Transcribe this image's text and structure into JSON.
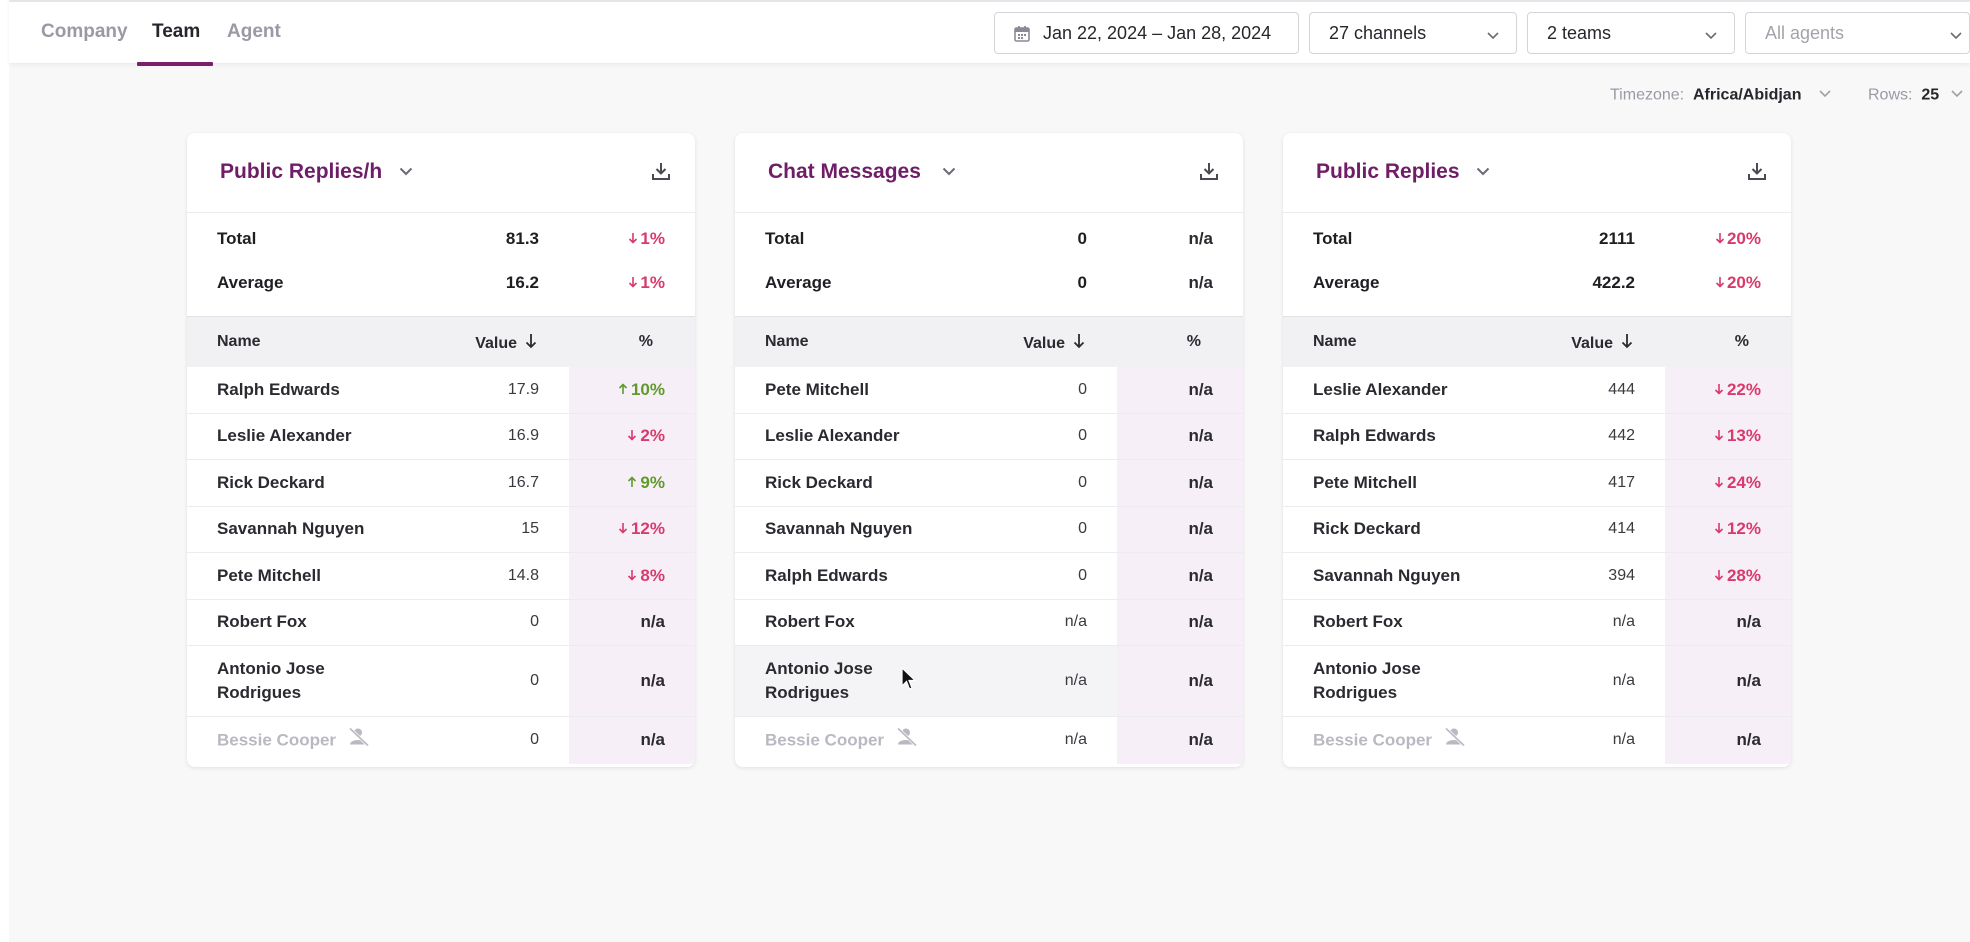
{
  "tabs": [
    {
      "label": "Company",
      "active": false
    },
    {
      "label": "Team",
      "active": true
    },
    {
      "label": "Agent",
      "active": false
    }
  ],
  "filters": {
    "date_range": "Jan 22, 2024 – Jan 28, 2024",
    "channels": "27 channels",
    "teams": "2 teams",
    "agents_placeholder": "All agents"
  },
  "settings": {
    "timezone_label": "Timezone:",
    "timezone_value": "Africa/Abidjan",
    "rows_label": "Rows:",
    "rows_value": "25"
  },
  "table_headers": {
    "name": "Name",
    "value": "Value",
    "pct": "%"
  },
  "summary_labels": {
    "total": "Total",
    "average": "Average"
  },
  "colors": {
    "accent": "#6f1d67",
    "down": "#d83a6b",
    "up": "#5f9a2a"
  },
  "cards": [
    {
      "title": "Public Replies/h",
      "total": {
        "value": "81.3",
        "pct": "1%",
        "dir": "down"
      },
      "average": {
        "value": "16.2",
        "pct": "1%",
        "dir": "down"
      },
      "rows": [
        {
          "name": "Ralph Edwards",
          "value": "17.9",
          "pct": "10%",
          "dir": "up"
        },
        {
          "name": "Leslie Alexander",
          "value": "16.9",
          "pct": "2%",
          "dir": "down"
        },
        {
          "name": "Rick Deckard",
          "value": "16.7",
          "pct": "9%",
          "dir": "up"
        },
        {
          "name": "Savannah Nguyen",
          "value": "15",
          "pct": "12%",
          "dir": "down"
        },
        {
          "name": "Pete Mitchell",
          "value": "14.8",
          "pct": "8%",
          "dir": "down"
        },
        {
          "name": "Robert Fox",
          "value": "0",
          "pct": "n/a",
          "dir": "none"
        },
        {
          "name": "Antonio Jose Rodrigues",
          "value": "0",
          "pct": "n/a",
          "dir": "none"
        },
        {
          "name": "Bessie Cooper",
          "value": "0",
          "pct": "n/a",
          "dir": "none",
          "disabled": true
        }
      ]
    },
    {
      "title": "Chat Messages",
      "total": {
        "value": "0",
        "pct": "n/a",
        "dir": "none"
      },
      "average": {
        "value": "0",
        "pct": "n/a",
        "dir": "none"
      },
      "rows": [
        {
          "name": "Pete Mitchell",
          "value": "0",
          "pct": "n/a",
          "dir": "none"
        },
        {
          "name": "Leslie Alexander",
          "value": "0",
          "pct": "n/a",
          "dir": "none"
        },
        {
          "name": "Rick Deckard",
          "value": "0",
          "pct": "n/a",
          "dir": "none"
        },
        {
          "name": "Savannah Nguyen",
          "value": "0",
          "pct": "n/a",
          "dir": "none"
        },
        {
          "name": "Ralph Edwards",
          "value": "0",
          "pct": "n/a",
          "dir": "none"
        },
        {
          "name": "Robert Fox",
          "value": "n/a",
          "pct": "n/a",
          "dir": "none"
        },
        {
          "name": "Antonio Jose Rodrigues",
          "value": "n/a",
          "pct": "n/a",
          "dir": "none",
          "hover": true
        },
        {
          "name": "Bessie Cooper",
          "value": "n/a",
          "pct": "n/a",
          "dir": "none",
          "disabled": true
        }
      ]
    },
    {
      "title": "Public Replies",
      "total": {
        "value": "2111",
        "pct": "20%",
        "dir": "down"
      },
      "average": {
        "value": "422.2",
        "pct": "20%",
        "dir": "down"
      },
      "rows": [
        {
          "name": "Leslie Alexander",
          "value": "444",
          "pct": "22%",
          "dir": "down"
        },
        {
          "name": "Ralph Edwards",
          "value": "442",
          "pct": "13%",
          "dir": "down"
        },
        {
          "name": "Pete Mitchell",
          "value": "417",
          "pct": "24%",
          "dir": "down"
        },
        {
          "name": "Rick Deckard",
          "value": "414",
          "pct": "12%",
          "dir": "down"
        },
        {
          "name": "Savannah Nguyen",
          "value": "394",
          "pct": "28%",
          "dir": "down"
        },
        {
          "name": "Robert Fox",
          "value": "n/a",
          "pct": "n/a",
          "dir": "none"
        },
        {
          "name": "Antonio Jose Rodrigues",
          "value": "n/a",
          "pct": "n/a",
          "dir": "none"
        },
        {
          "name": "Bessie Cooper",
          "value": "n/a",
          "pct": "n/a",
          "dir": "none",
          "disabled": true
        }
      ]
    }
  ]
}
